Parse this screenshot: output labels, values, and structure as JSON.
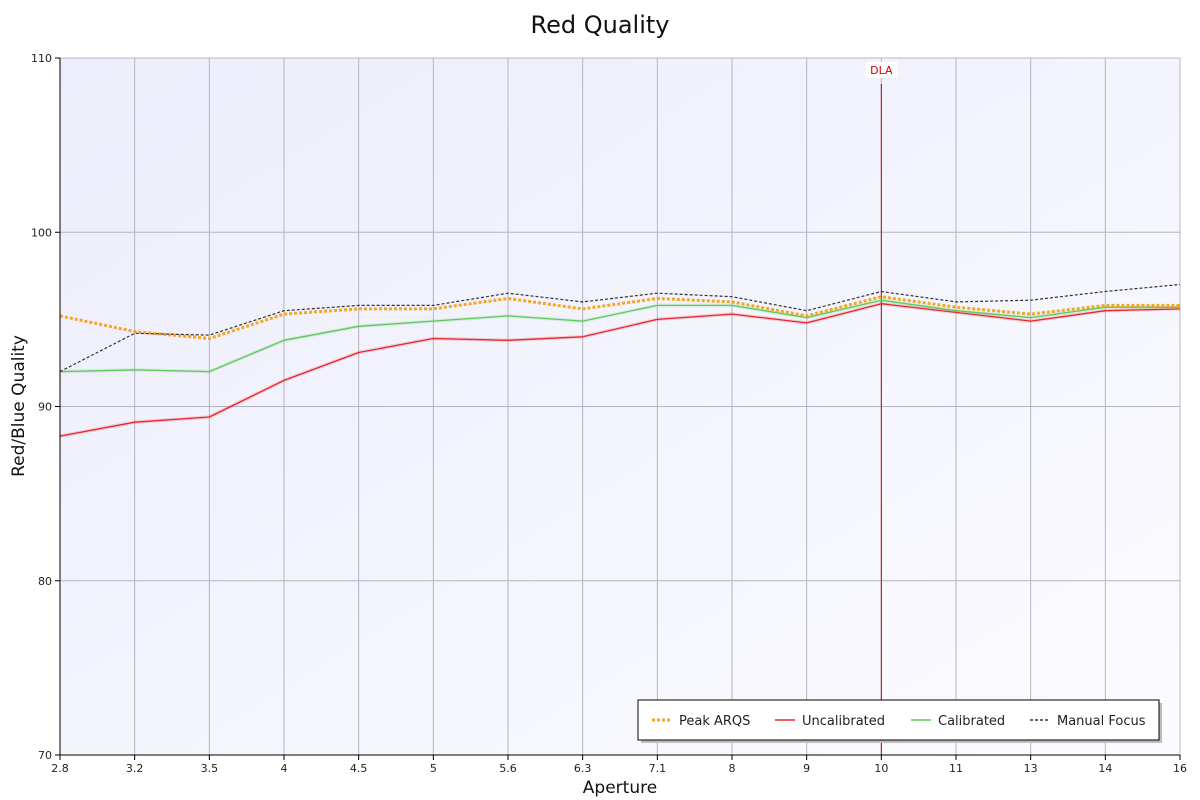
{
  "chart_data": {
    "type": "line",
    "title": "Red Quality",
    "xlabel": "Aperture",
    "ylabel": "Red/Blue Quality",
    "categories": [
      "2.8",
      "3.2",
      "3.5",
      "4",
      "4.5",
      "5",
      "5.6",
      "6.3",
      "7.1",
      "8",
      "9",
      "10",
      "11",
      "13",
      "14",
      "16"
    ],
    "ylim": [
      70,
      110
    ],
    "yticks": [
      70,
      80,
      90,
      100,
      110
    ],
    "grid": true,
    "legend_position": "bottom-right",
    "series": [
      {
        "name": "Peak ARQS",
        "color": "#f5a623",
        "style": "dotted-thick",
        "values": [
          95.2,
          94.3,
          93.9,
          95.3,
          95.6,
          95.6,
          96.2,
          95.6,
          96.2,
          96.0,
          95.2,
          96.3,
          95.7,
          95.3,
          95.8,
          95.8
        ]
      },
      {
        "name": "Uncalibrated",
        "color": "#e8272d",
        "style": "solid",
        "values": [
          88.3,
          89.1,
          89.4,
          91.5,
          93.1,
          93.9,
          93.8,
          94.0,
          95.0,
          95.3,
          94.8,
          95.9,
          95.4,
          94.9,
          95.5,
          95.6
        ]
      },
      {
        "name": "Calibrated",
        "color": "#5ec95e",
        "style": "solid",
        "values": [
          92.0,
          92.1,
          92.0,
          93.8,
          94.6,
          94.9,
          95.2,
          94.9,
          95.8,
          95.8,
          95.1,
          96.1,
          95.5,
          95.1,
          95.7,
          95.7
        ]
      },
      {
        "name": "Manual Focus",
        "color": "#333333",
        "style": "dashed",
        "values": [
          92.0,
          94.2,
          94.1,
          95.5,
          95.8,
          95.8,
          96.5,
          96.0,
          96.5,
          96.3,
          95.5,
          96.6,
          96.0,
          96.1,
          96.6,
          97.0
        ]
      }
    ],
    "annotations": [
      {
        "type": "vertical-line",
        "x": "10",
        "label": "DLA",
        "color": "#cc0000"
      }
    ]
  }
}
